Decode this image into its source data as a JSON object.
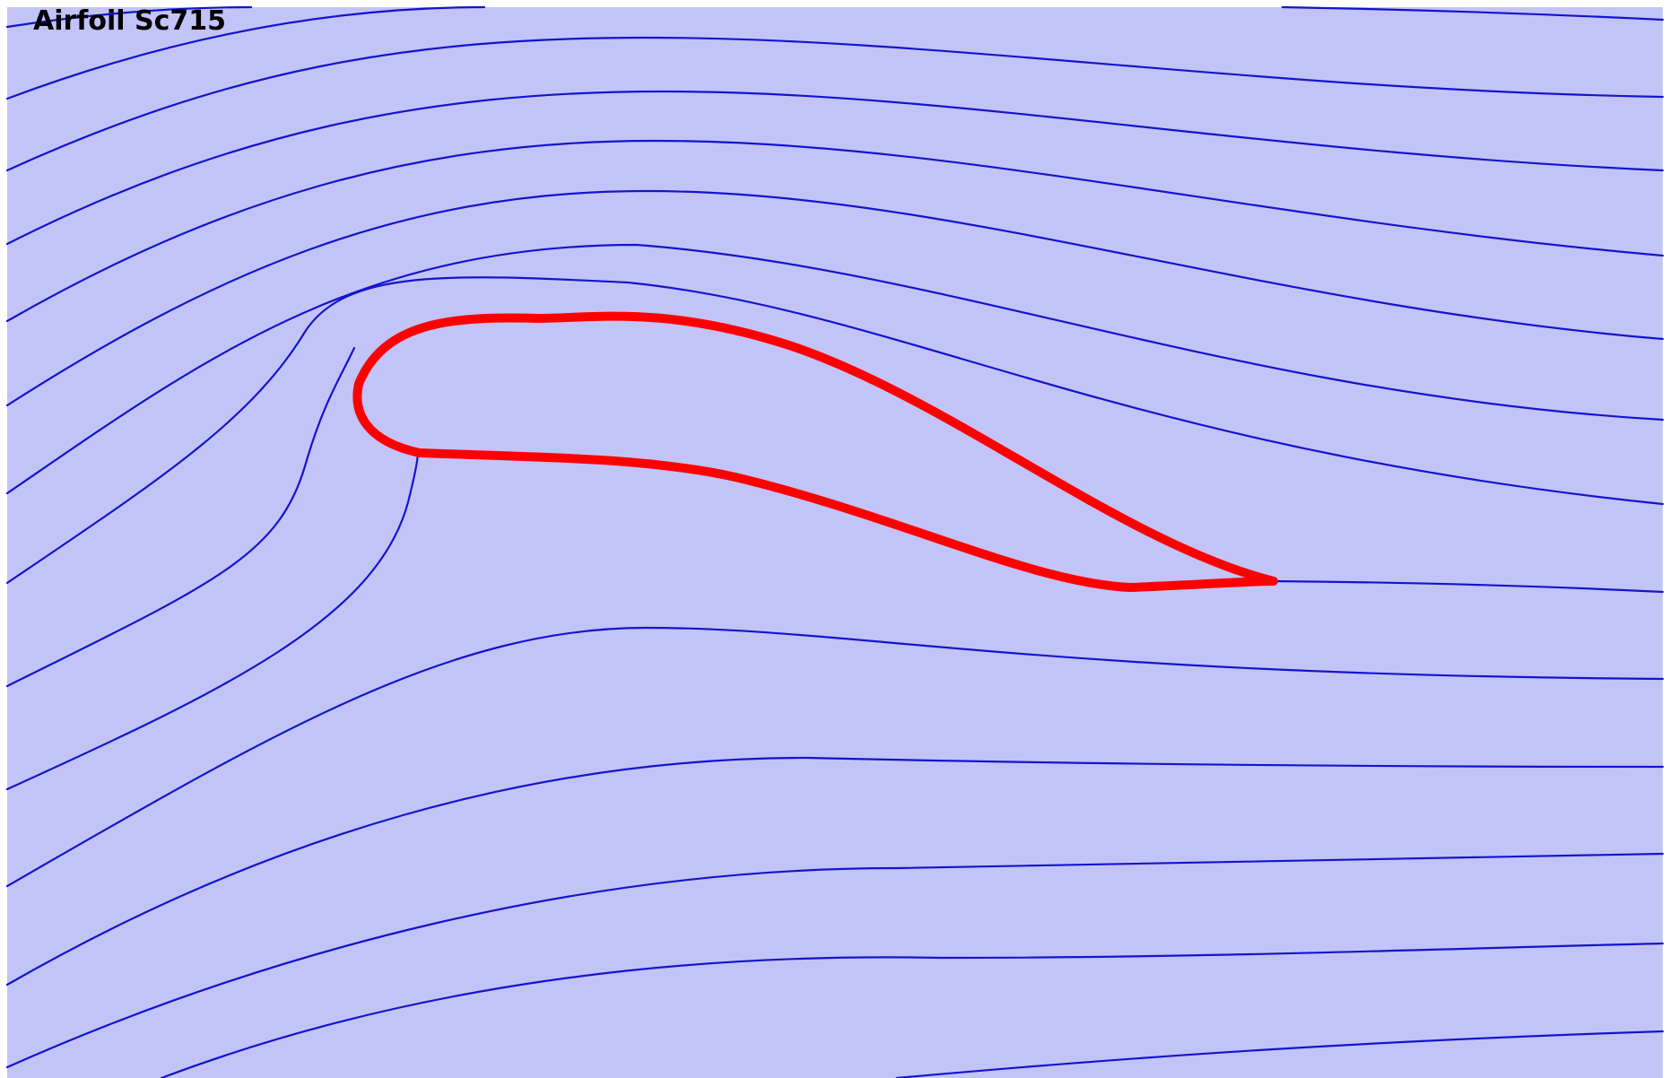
{
  "title": "Airfoil Sc715",
  "colors": {
    "background": "#c2c4f8",
    "streamline": "#1414cc",
    "airfoil": "#ff0000"
  }
}
